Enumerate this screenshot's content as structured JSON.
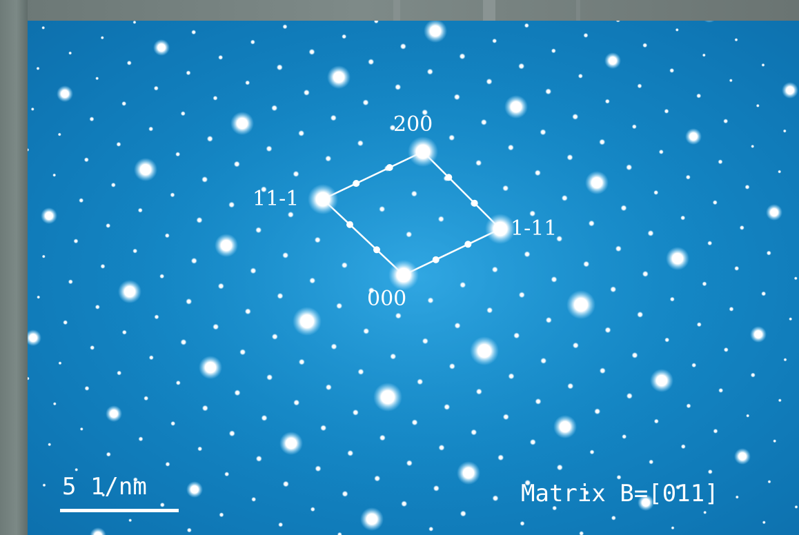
{
  "image": {
    "subject": "electron-diffraction-pattern",
    "background_color": "#1486c4",
    "spot_color": "#ffffff"
  },
  "labels": {
    "spot_200": "200",
    "spot_11_1": "11-1",
    "spot_1_11": "1-11",
    "spot_000": "000"
  },
  "scale_bar": {
    "label": "5 1/nm"
  },
  "zone_axis": {
    "label": "Matrix B=[011]"
  }
}
